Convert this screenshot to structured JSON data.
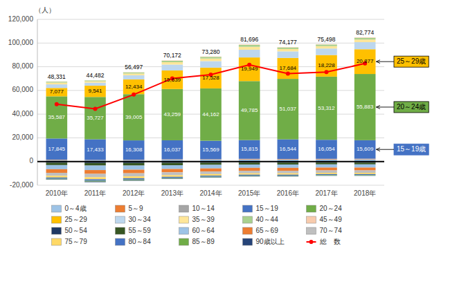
{
  "chart_data": {
    "type": "bar",
    "stacked": true,
    "grid": true,
    "legend": "bottom",
    "y_label": "（人）",
    "categories": [
      "2010年",
      "2011年",
      "2012年",
      "2013年",
      "2014年",
      "2015年",
      "2016年",
      "2017年",
      "2018年"
    ],
    "ylim": [
      -20000,
      120000
    ],
    "yticks": [
      {
        "value": -20000,
        "label": "-20,000"
      },
      0,
      {
        "value": 20000,
        "label": "20,000"
      },
      {
        "value": 40000,
        "label": "40,000"
      },
      {
        "value": 60000,
        "label": "60,000"
      },
      {
        "value": 80000,
        "label": "80,000"
      },
      {
        "value": 100000,
        "label": "100,000"
      },
      {
        "value": 120000,
        "label": "120,000"
      }
    ],
    "series": [
      {
        "name": "0～4歳",
        "color": "#9DC3E6",
        "values": [
          1200,
          1100,
          1300,
          1500,
          1600,
          1800,
          1700,
          1800,
          1900
        ]
      },
      {
        "name": "5～9",
        "color": "#ED7D31",
        "values": [
          300,
          200,
          200,
          300,
          300,
          400,
          400,
          400,
          400
        ]
      },
      {
        "name": "10～14",
        "color": "#A5A5A5",
        "values": [
          100,
          50,
          50,
          100,
          100,
          100,
          100,
          100,
          100
        ]
      },
      {
        "name": "15～19",
        "color": "#4472C4",
        "values": [
          17845,
          17433,
          16308,
          16037,
          15569,
          15815,
          16544,
          16054,
          15609
        ],
        "data_labels": true,
        "value_labels": [
          "17,845",
          "17,433",
          "16,308",
          "16,037",
          "15,569",
          "15,815",
          "16,544",
          "16,054",
          "15,609"
        ]
      },
      {
        "name": "20～24",
        "color": "#70AD47",
        "values": [
          35587,
          35727,
          39005,
          43259,
          44162,
          49785,
          51037,
          53312,
          55883
        ],
        "data_labels": true,
        "value_labels": [
          "35,587",
          "35,727",
          "39,005",
          "43,259",
          "44,162",
          "49,785",
          "51,037",
          "53,312",
          "55,883"
        ]
      },
      {
        "name": "25～29",
        "color": "#FFC000",
        "values": [
          7077,
          9541,
          12434,
          15639,
          17528,
          19949,
          17684,
          18228,
          20877
        ],
        "data_labels": true,
        "value_labels": [
          "7,077",
          "9,541",
          "12,434",
          "15,639",
          "17,528",
          "19,949",
          "17,684",
          "18,228",
          "20,877"
        ]
      },
      {
        "name": "30～34",
        "color": "#BDD7EE",
        "values": [
          3000,
          2500,
          3500,
          5000,
          5500,
          6500,
          5500,
          5500,
          6000
        ]
      },
      {
        "name": "35～39",
        "color": "#FFE699",
        "values": [
          1500,
          1200,
          1500,
          2000,
          2200,
          2500,
          2000,
          2000,
          2200
        ]
      },
      {
        "name": "40～44",
        "color": "#A9D18E",
        "values": [
          800,
          700,
          900,
          1200,
          1400,
          1600,
          1300,
          1400,
          1500
        ]
      },
      {
        "name": "45～49",
        "color": "#F8CBAD",
        "values": [
          200,
          100,
          200,
          300,
          300,
          400,
          300,
          300,
          400
        ]
      },
      {
        "name": "50～54",
        "color": "#1F3864",
        "values": [
          -1000,
          -1200,
          -1200,
          -1100,
          -1000,
          -900,
          -900,
          -900,
          -900
        ]
      },
      {
        "name": "55～59",
        "color": "#375623",
        "values": [
          -2000,
          -2200,
          -2200,
          -2000,
          -1800,
          -1600,
          -1600,
          -1500,
          -1500
        ]
      },
      {
        "name": "60～64",
        "color": "#9DC3E6",
        "values": [
          -3500,
          -3800,
          -3500,
          -3200,
          -3000,
          -2800,
          -2800,
          -2700,
          -2700
        ]
      },
      {
        "name": "65～69",
        "color": "#ED7D31",
        "values": [
          -3000,
          -3200,
          -3000,
          -2800,
          -2600,
          -2500,
          -2500,
          -2400,
          -2400
        ]
      },
      {
        "name": "70～74",
        "color": "#BFBFBF",
        "values": [
          -2500,
          -2800,
          -2600,
          -2400,
          -2200,
          -2100,
          -2100,
          -2000,
          -2000
        ]
      },
      {
        "name": "75～79",
        "color": "#FFD966",
        "values": [
          -1500,
          -1800,
          -1600,
          -1400,
          -1300,
          -1200,
          -1200,
          -1100,
          -1100
        ]
      },
      {
        "name": "80～84",
        "color": "#4472C4",
        "values": [
          -1000,
          -1200,
          -1100,
          -1000,
          -900,
          -800,
          -800,
          -800,
          -800
        ]
      },
      {
        "name": "85～89",
        "color": "#70AD47",
        "values": [
          -500,
          -700,
          -600,
          -500,
          -500,
          -400,
          -400,
          -400,
          -400
        ]
      },
      {
        "name": "90歳以上",
        "color": "#264478",
        "values": [
          -300,
          -500,
          -400,
          -300,
          -300,
          -300,
          -300,
          -200,
          -200
        ]
      },
      {
        "name": "総　数",
        "type": "line",
        "color": "red",
        "marker": "circle",
        "values": [
          48331,
          44482,
          56497,
          70172,
          73280,
          81696,
          74177,
          75498,
          82774
        ],
        "data_labels": true,
        "value_labels": [
          "48,331",
          "44,482",
          "56,497",
          "70,172",
          "73,280",
          "81,696",
          "74,177",
          "75,498",
          "82,774"
        ]
      }
    ],
    "annotations": [
      {
        "text": "25～29歳",
        "series": "25～29"
      },
      {
        "text": "20～24歳",
        "series": "20～24"
      },
      {
        "text": "15～19歳",
        "series": "15～19"
      }
    ]
  }
}
